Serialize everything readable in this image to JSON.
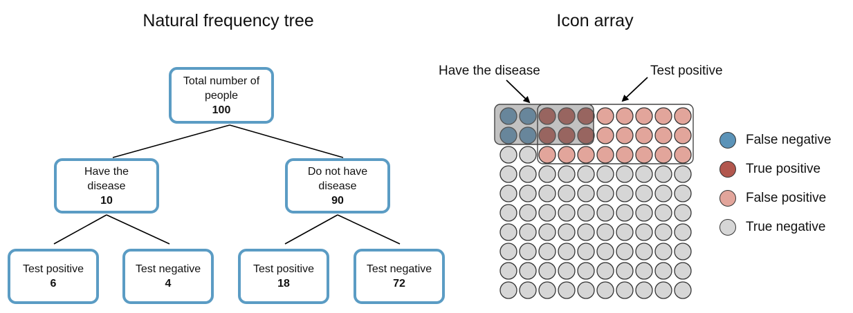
{
  "tree": {
    "title": "Natural frequency tree",
    "root": {
      "label": "Total number of people",
      "value": "100"
    },
    "level1": [
      {
        "label": "Have the disease",
        "value": "10"
      },
      {
        "label": "Do not have disease",
        "value": "90"
      }
    ],
    "level2": [
      {
        "label": "Test positive",
        "value": "6"
      },
      {
        "label": "Test negative",
        "value": "4"
      },
      {
        "label": "Test positive",
        "value": "18"
      },
      {
        "label": "Test negative",
        "value": "72"
      }
    ]
  },
  "icon_array": {
    "title": "Icon array",
    "callout_disease": "Have the disease",
    "callout_positive": "Test positive",
    "rows": 10,
    "cols": 10,
    "counts": {
      "false_negative": 4,
      "true_positive": 6,
      "false_positive": 18,
      "true_negative": 72
    },
    "colors": {
      "false_negative": "#5b93b8",
      "true_positive": "#b2574e",
      "false_positive": "#e2a59b",
      "true_negative": "#d6d6d6",
      "node_border": "#5b9cc4"
    }
  },
  "legend": [
    {
      "label": "False negative",
      "color": "#5b93b8"
    },
    {
      "label": "True positive",
      "color": "#b2574e"
    },
    {
      "label": "False positive",
      "color": "#e2a59b"
    },
    {
      "label": "True negative",
      "color": "#d6d6d6"
    }
  ]
}
